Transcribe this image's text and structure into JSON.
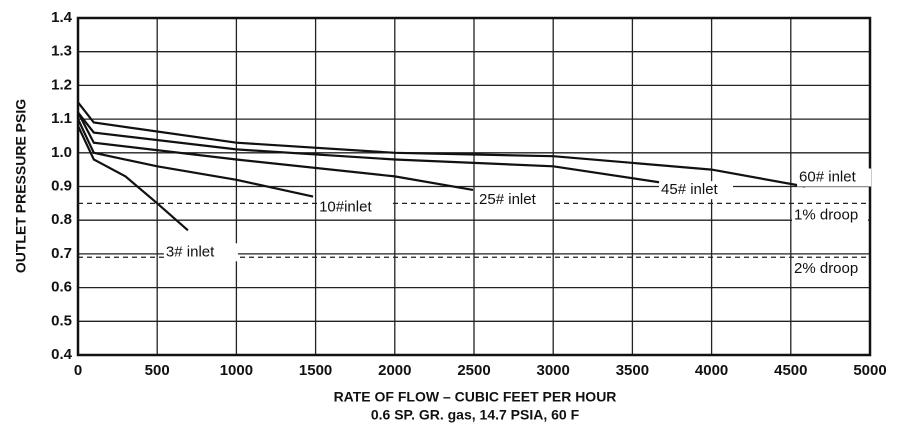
{
  "chart_data": {
    "type": "line",
    "xlabel": "RATE OF FLOW – CUBIC FEET PER HOUR",
    "subtitle": "0.6 SP. GR. gas, 14.7 PSIA, 60 F",
    "ylabel": "OUTLET PRESSURE PSIG",
    "xlim": [
      0,
      5000
    ],
    "xticks": [
      0,
      500,
      1000,
      1500,
      2000,
      2500,
      3000,
      3500,
      4000,
      4500,
      5000
    ],
    "ylim": [
      0.4,
      1.4
    ],
    "yticks": [
      0.4,
      0.5,
      0.6,
      0.7,
      0.8,
      0.9,
      {
        "value": 1,
        "label": "1.0"
      },
      1.1,
      1.2,
      1.3,
      1.4
    ],
    "grid": true,
    "color": "#111111",
    "series": [
      {
        "name": "3# inlet",
        "color": "#111111",
        "x": [
          0,
          100,
          300,
          500,
          694
        ],
        "values": [
          1.08,
          0.98,
          0.93,
          0.85,
          0.77
        ]
      },
      {
        "name": "10#inlet",
        "color": "#111111",
        "x": [
          0,
          100,
          500,
          1000,
          1484
        ],
        "values": [
          1.1,
          1.0,
          0.96,
          0.92,
          0.87
        ]
      },
      {
        "name": "25# inlet",
        "color": "#111111",
        "x": [
          0,
          100,
          1000,
          2000,
          2494
        ],
        "values": [
          1.12,
          1.03,
          0.98,
          0.93,
          0.89
        ]
      },
      {
        "name": "45# inlet",
        "color": "#111111",
        "x": [
          0,
          100,
          1000,
          2000,
          3000,
          3706
        ],
        "values": [
          1.12,
          1.06,
          1.01,
          0.98,
          0.96,
          0.91
        ]
      },
      {
        "name": "60# inlet",
        "color": "#111111",
        "x": [
          0,
          100,
          1000,
          2000,
          3000,
          4000,
          4590
        ],
        "values": [
          1.15,
          1.09,
          1.03,
          1.0,
          0.99,
          0.95,
          0.9
        ]
      }
    ],
    "reference_lines": [
      {
        "name": "1% droop",
        "value": 0.85
      },
      {
        "name": "2% droop",
        "value": 0.69
      }
    ]
  }
}
